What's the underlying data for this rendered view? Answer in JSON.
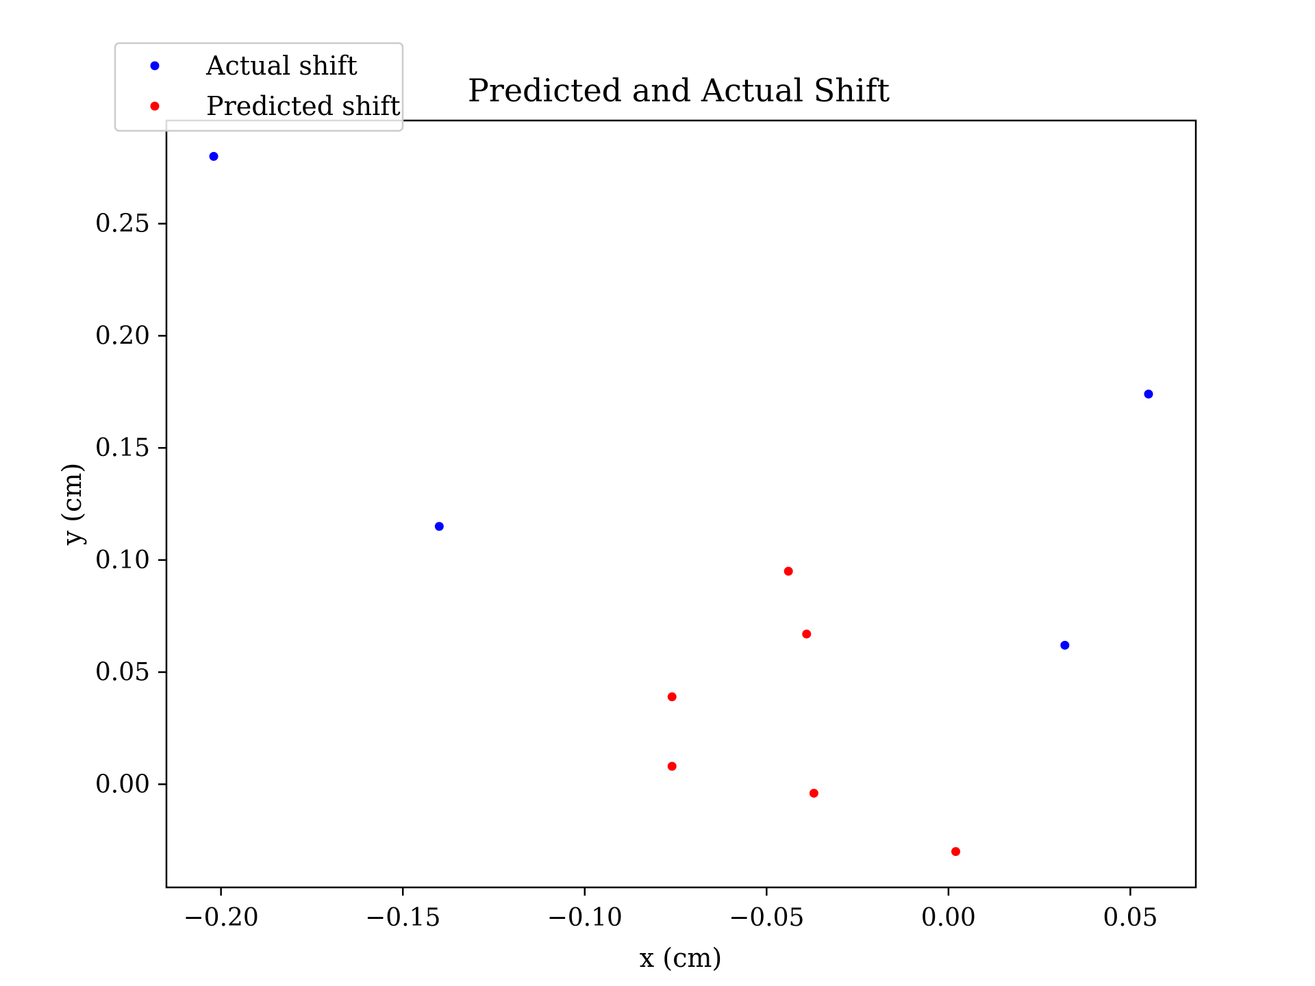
{
  "chart_data": {
    "type": "scatter",
    "title": "Predicted and Actual Shift",
    "xlabel": "x (cm)",
    "ylabel": "y (cm)",
    "xlim": [
      -0.215,
      0.068
    ],
    "ylim": [
      -0.046,
      0.296
    ],
    "xticks": [
      -0.2,
      -0.15,
      -0.1,
      -0.05,
      0.0,
      0.05
    ],
    "xtick_labels": [
      "−0.20",
      "−0.15",
      "−0.10",
      "−0.05",
      "0.00",
      "0.05"
    ],
    "yticks": [
      0.0,
      0.05,
      0.1,
      0.15,
      0.2,
      0.25
    ],
    "ytick_labels": [
      "0.00",
      "0.05",
      "0.10",
      "0.15",
      "0.20",
      "0.25"
    ],
    "grid": false,
    "legend_position": "top-left",
    "series": [
      {
        "name": "Actual shift",
        "color": "#0000ff",
        "points": [
          {
            "x": -0.202,
            "y": 0.28
          },
          {
            "x": -0.14,
            "y": 0.115
          },
          {
            "x": 0.032,
            "y": 0.062
          },
          {
            "x": 0.055,
            "y": 0.174
          }
        ]
      },
      {
        "name": "Predicted shift",
        "color": "#ff0000",
        "points": [
          {
            "x": -0.044,
            "y": 0.095
          },
          {
            "x": -0.039,
            "y": 0.067
          },
          {
            "x": -0.076,
            "y": 0.039
          },
          {
            "x": -0.076,
            "y": 0.008
          },
          {
            "x": -0.037,
            "y": -0.004
          },
          {
            "x": 0.002,
            "y": -0.03
          }
        ]
      }
    ]
  }
}
